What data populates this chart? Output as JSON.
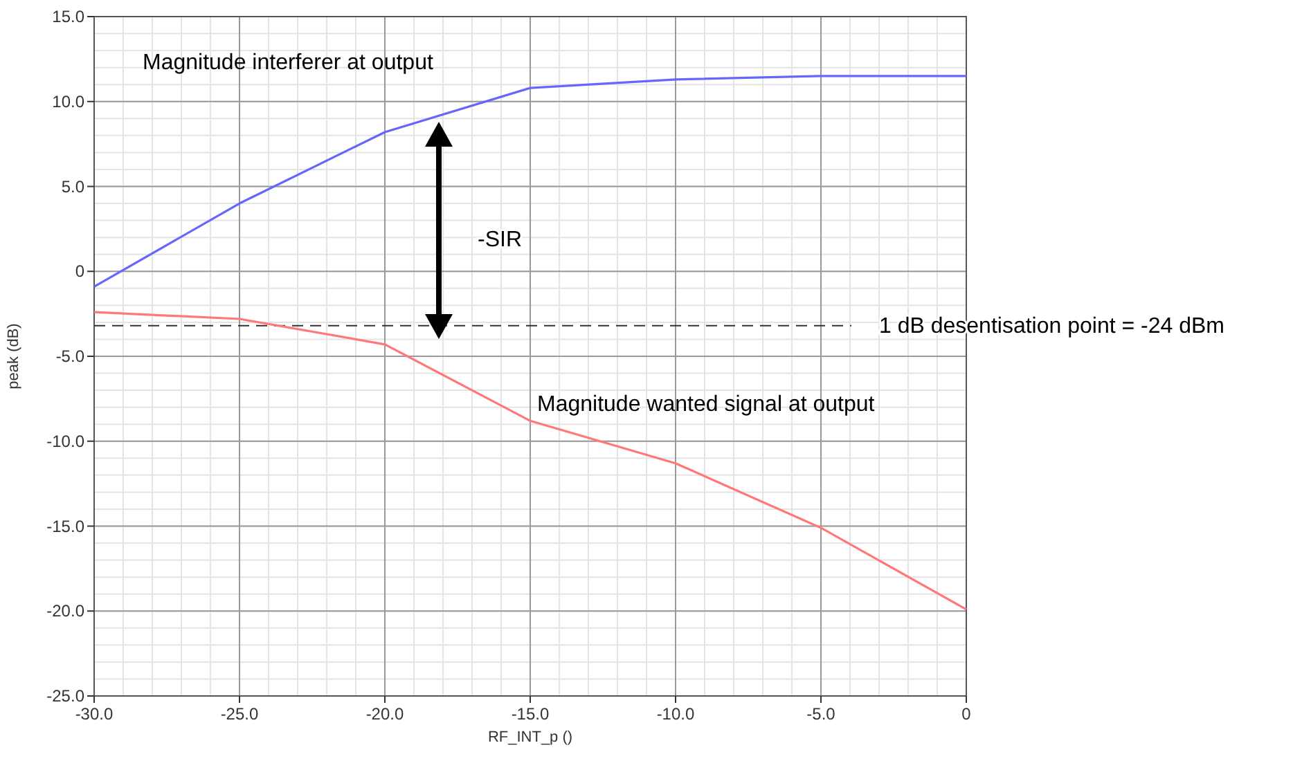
{
  "chart_data": {
    "type": "line",
    "xlabel": "RF_INT_p ()",
    "ylabel": "peak (dB)",
    "x": [
      -30,
      -25,
      -20,
      -15,
      -10,
      -5,
      0
    ],
    "series": [
      {
        "name": "Magnitude interferer at output",
        "color": "#6666ff",
        "values": [
          -0.9,
          4.0,
          8.2,
          10.8,
          11.3,
          11.5,
          11.5
        ]
      },
      {
        "name": "Magnitude wanted signal at output",
        "color": "#ff7777",
        "values": [
          -2.4,
          -2.8,
          -4.3,
          -8.8,
          -11.3,
          -15.1,
          -19.9
        ]
      }
    ],
    "xlim": [
      -30,
      0
    ],
    "ylim": [
      -25,
      15
    ],
    "xticks": [
      {
        "value": -30,
        "label": "-30.0"
      },
      {
        "value": -25,
        "label": "-25.0"
      },
      {
        "value": -20,
        "label": "-20.0"
      },
      {
        "value": -15,
        "label": "-15.0"
      },
      {
        "value": -10,
        "label": "-10.0"
      },
      {
        "value": -5,
        "label": "-5.0"
      },
      0
    ],
    "yticks": [
      {
        "value": -25,
        "label": "-25.0"
      },
      {
        "value": -20,
        "label": "-20.0"
      },
      {
        "value": -15,
        "label": "-15.0"
      },
      {
        "value": -10,
        "label": "-10.0"
      },
      {
        "value": -5,
        "label": "-5.0"
      },
      0,
      {
        "value": 5,
        "label": "5.0"
      },
      {
        "value": 10,
        "label": "10.0"
      },
      {
        "value": 15,
        "label": "15.0"
      }
    ],
    "grid": true,
    "line_style": "solid",
    "marker": "none",
    "ref_lines": [
      {
        "axis": "y",
        "value": -3.2,
        "color": "#333333",
        "line_style": "dashed"
      }
    ],
    "annotations": [
      "-SIR",
      "1 dB desentisation point = -24 dBm"
    ]
  }
}
